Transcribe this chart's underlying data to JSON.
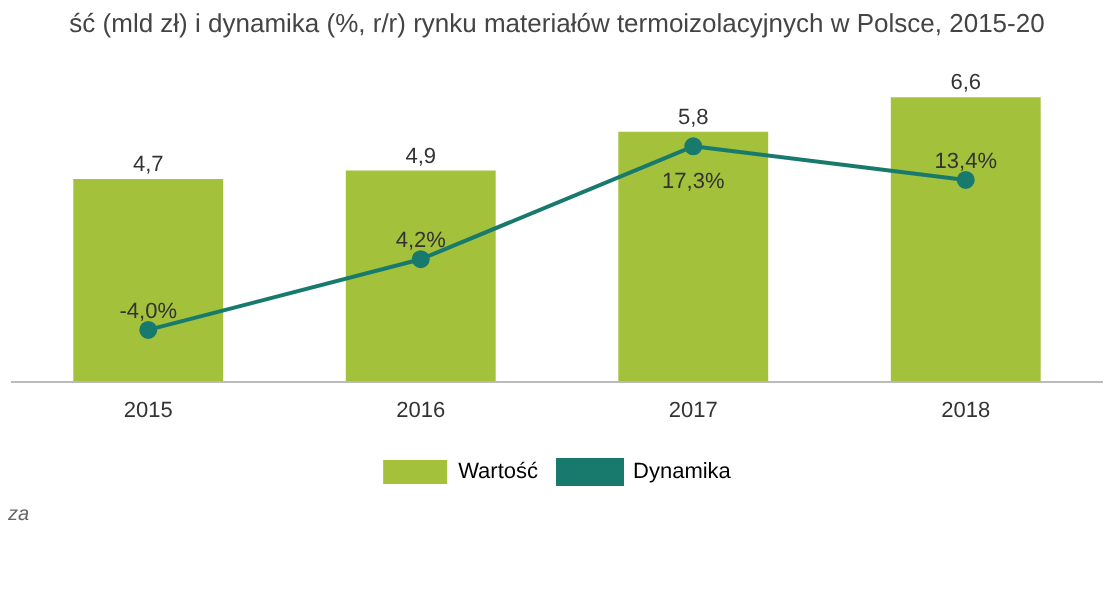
{
  "chart_data": {
    "type": "bar",
    "title": "ść (mld zł) i dynamika (%, r/r) rynku materiałów termoizolacyjnych w Polsce, 2015-20",
    "categories": [
      "2015",
      "2016",
      "2017",
      "2018"
    ],
    "series": [
      {
        "name": "Wartość",
        "color": "#a3c13b",
        "values": [
          4.7,
          4.9,
          5.8,
          6.6
        ],
        "value_labels": [
          "4,7",
          "4,9",
          "5,8",
          "6,6"
        ]
      },
      {
        "name": "Dynamika",
        "type": "line",
        "axis": "y2",
        "color": "#177a6c",
        "marker": "circle",
        "values": [
          -4.0,
          4.2,
          17.3,
          13.4
        ],
        "value_labels": [
          "-4,0%",
          "4,2%",
          "17,3%",
          "13,4%"
        ]
      }
    ],
    "tick_labels": "x",
    "grid": false,
    "legend": "bottom",
    "annotations": [
      "za"
    ]
  }
}
